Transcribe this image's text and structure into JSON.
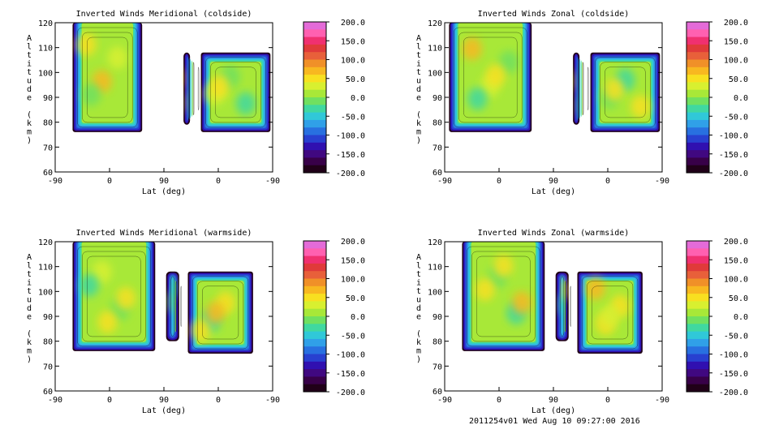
{
  "footer": "2011254v01 Wed Aug 10 09:27:00 2016",
  "colorbar": {
    "tick_labels": [
      "200.0",
      "150.0",
      "100.0",
      "50.0",
      "0.0",
      "-50.0",
      "-100.0",
      "-150.0",
      "-200.0"
    ],
    "colors": [
      "#e46bd8",
      "#ff60b0",
      "#f03070",
      "#e03a3a",
      "#e8603a",
      "#f09028",
      "#f8b820",
      "#f8e020",
      "#d8f030",
      "#a8e838",
      "#70e060",
      "#40d8a0",
      "#30c8d8",
      "#30a0e8",
      "#2870e0",
      "#2840d0",
      "#3010b0",
      "#400880",
      "#380048",
      "#200018"
    ]
  },
  "chart_data": [
    {
      "type": "heatmap",
      "title": "Inverted Winds Meridional (coldside)",
      "xlabel": "Lat (deg)",
      "ylabel": "Altitude (km)",
      "x_tick_labels": [
        "-90",
        "0",
        "90",
        "0",
        "-90"
      ],
      "y_tick_labels": [
        "60",
        "70",
        "80",
        "90",
        "100",
        "110",
        "120"
      ],
      "ylim": [
        60,
        120
      ],
      "colorbar_range": [
        -200,
        200
      ],
      "colorbar_ticks": [
        200,
        150,
        100,
        50,
        0,
        -50,
        -100,
        -150,
        -200
      ]
    },
    {
      "type": "heatmap",
      "title": "Inverted Winds Zonal (coldside)",
      "xlabel": "Lat (deg)",
      "ylabel": "Altitude (km)",
      "x_tick_labels": [
        "-90",
        "0",
        "90",
        "0",
        "-90"
      ],
      "y_tick_labels": [
        "60",
        "70",
        "80",
        "90",
        "100",
        "110",
        "120"
      ],
      "ylim": [
        60,
        120
      ],
      "colorbar_range": [
        -200,
        200
      ],
      "colorbar_ticks": [
        200,
        150,
        100,
        50,
        0,
        -50,
        -100,
        -150,
        -200
      ]
    },
    {
      "type": "heatmap",
      "title": "Inverted Winds Meridional (warmside)",
      "xlabel": "Lat (deg)",
      "ylabel": "Altitude (km)",
      "x_tick_labels": [
        "-90",
        "0",
        "90",
        "0",
        "-90"
      ],
      "y_tick_labels": [
        "60",
        "70",
        "80",
        "90",
        "100",
        "110",
        "120"
      ],
      "ylim": [
        60,
        120
      ],
      "colorbar_range": [
        -200,
        200
      ],
      "colorbar_ticks": [
        200,
        150,
        100,
        50,
        0,
        -50,
        -100,
        -150,
        -200
      ]
    },
    {
      "type": "heatmap",
      "title": "Inverted Winds Zonal (warmside)",
      "xlabel": "Lat (deg)",
      "ylabel": "Altitude (km)",
      "x_tick_labels": [
        "-90",
        "0",
        "90",
        "0",
        "-90"
      ],
      "y_tick_labels": [
        "60",
        "70",
        "80",
        "90",
        "100",
        "110",
        "120"
      ],
      "ylim": [
        60,
        120
      ],
      "colorbar_range": [
        -200,
        200
      ],
      "colorbar_ticks": [
        200,
        150,
        100,
        50,
        0,
        -50,
        -100,
        -150,
        -200
      ]
    }
  ]
}
